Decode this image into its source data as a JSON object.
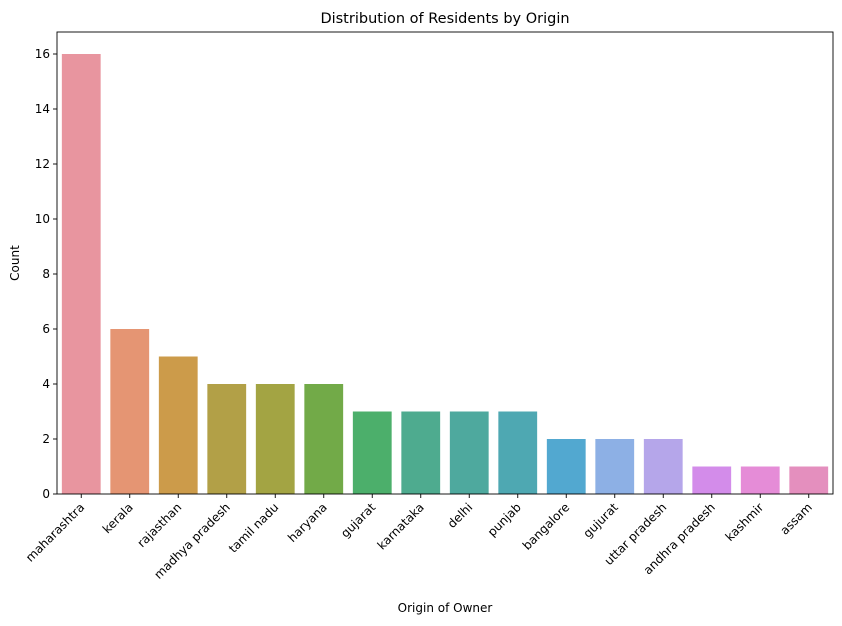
{
  "chart_data": {
    "type": "bar",
    "title": "Distribution of Residents by Origin",
    "xlabel": "Origin of Owner",
    "ylabel": "Count",
    "categories": [
      "maharashtra",
      "kerala",
      "rajasthan",
      "madhya pradesh",
      "tamil nadu",
      "haryana",
      "gujarat",
      "karnataka",
      "delhi",
      "punjab",
      "bangalore",
      "gujurat",
      "uttar pradesh",
      "andhra pradesh",
      "kashmir",
      "assam"
    ],
    "values": [
      16,
      6,
      5,
      4,
      4,
      4,
      3,
      3,
      3,
      3,
      2,
      2,
      2,
      1,
      1,
      1
    ],
    "colors": [
      "#e8959f",
      "#e59573",
      "#cc9b4a",
      "#b2a047",
      "#a3a443",
      "#72aa48",
      "#4caf6b",
      "#4eab8f",
      "#4ea99e",
      "#4ea8b2",
      "#52a8d0",
      "#8db0e5",
      "#b5a6ea",
      "#d38cea",
      "#e58cd7",
      "#e48fbe"
    ],
    "ylim": [
      0,
      16.8
    ],
    "yticks": [
      0,
      2,
      4,
      6,
      8,
      10,
      12,
      14,
      16
    ],
    "grid": false,
    "legend": "none"
  }
}
